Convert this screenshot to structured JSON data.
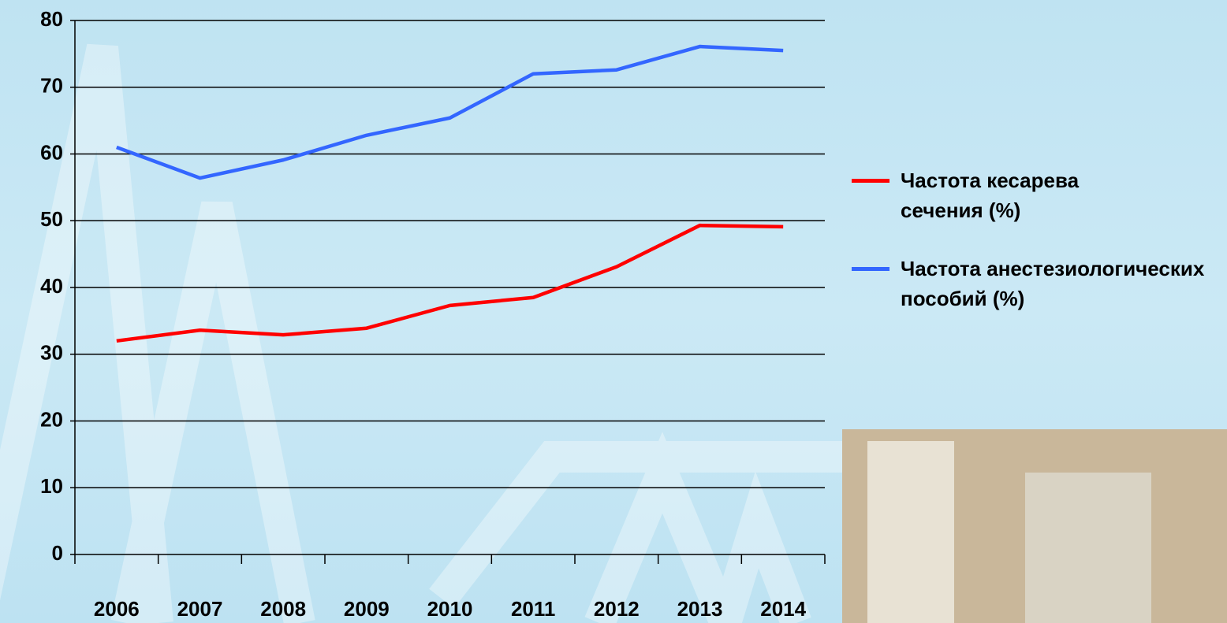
{
  "chart_data": {
    "type": "line",
    "categories": [
      "2006",
      "2007",
      "2008",
      "2009",
      "2010",
      "2011",
      "2012",
      "2013",
      "2014"
    ],
    "series": [
      {
        "name": "Частота кесарева сечения (%)",
        "color": "#ff0000",
        "values": [
          32,
          33.6,
          32.9,
          33.9,
          37.3,
          38.5,
          43.1,
          49.3,
          49.1
        ]
      },
      {
        "name": "Частота анестезиологических пособий (%)",
        "color": "#3366ff",
        "values": [
          61,
          56.4,
          59.1,
          62.8,
          65.4,
          72,
          72.6,
          76.1,
          75.5
        ]
      }
    ],
    "ylim": [
      0,
      80
    ],
    "yticks": [
      0,
      10,
      20,
      30,
      40,
      50,
      60,
      70,
      80
    ],
    "grid": true,
    "legend": "right"
  }
}
